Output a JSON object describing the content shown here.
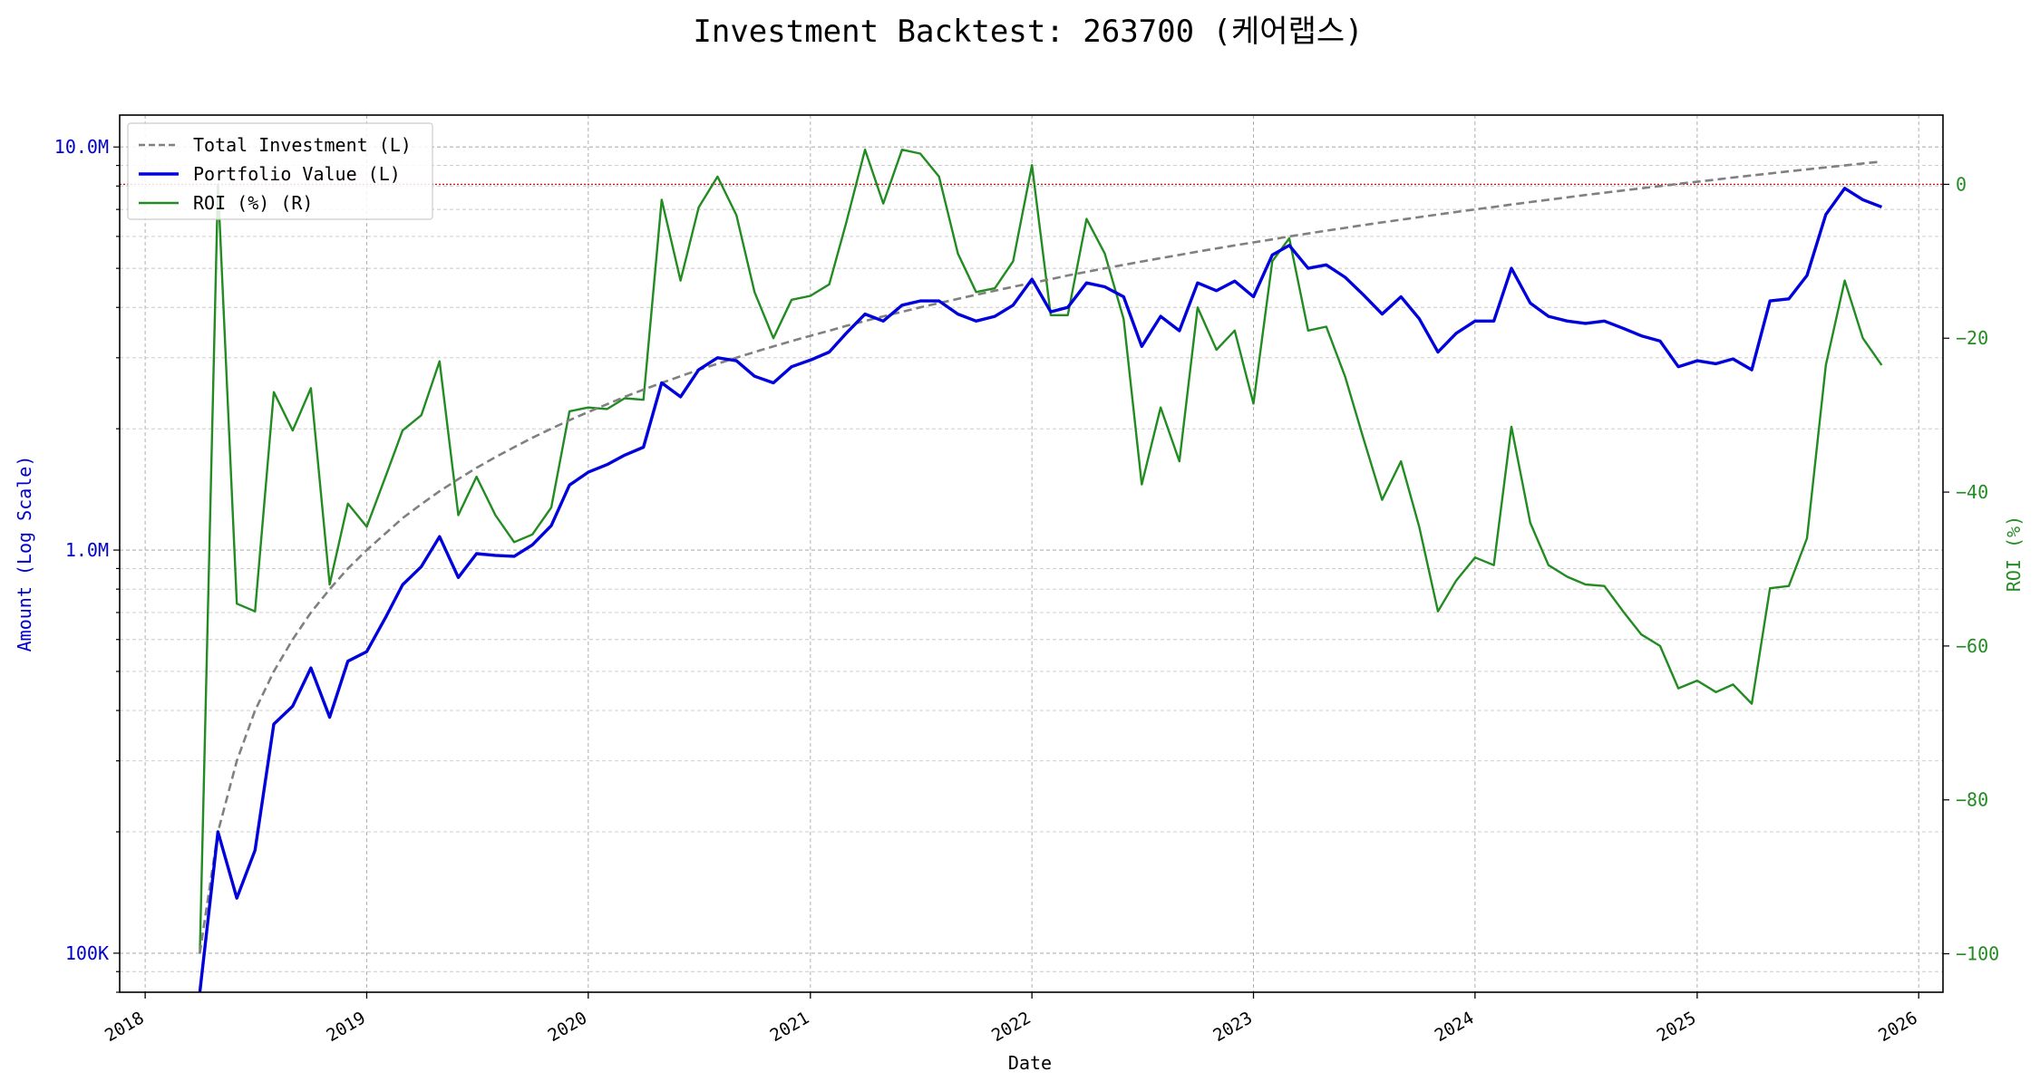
{
  "chart_data": {
    "type": "line",
    "title": "Investment Backtest: 263700 (케어랩스)",
    "xlabel": "Date",
    "ylabel_left": "Amount (Log Scale)",
    "ylabel_right": "ROI (%)",
    "left_scale": "log",
    "left_ylim": [
      80000,
      12000000
    ],
    "right_ylim": [
      -105,
      9
    ],
    "x_range": [
      "2017-11-20",
      "2026-02-10"
    ],
    "x_tick_labels": [
      "2018",
      "2019",
      "2020",
      "2021",
      "2022",
      "2023",
      "2024",
      "2025",
      "2026"
    ],
    "x_tick_dates": [
      "2018-01-01",
      "2019-01-01",
      "2020-01-01",
      "2021-01-01",
      "2022-01-01",
      "2023-01-01",
      "2024-01-01",
      "2025-01-01",
      "2026-01-01"
    ],
    "left_tick_labels": [
      "100K",
      "1.0M",
      "10.0M"
    ],
    "left_tick_values": [
      100000,
      1000000,
      10000000
    ],
    "right_tick_labels": [
      "0",
      "−20",
      "−40",
      "−60",
      "−80",
      "−100"
    ],
    "right_tick_values": [
      0,
      -20,
      -40,
      -60,
      -80,
      -100
    ],
    "grid": true,
    "legend_position": "top-left",
    "reference_line": {
      "axis": "right",
      "value": 0,
      "color": "#b22222"
    },
    "colors": {
      "total_investment": "#808080",
      "portfolio_value": "#0000dd",
      "roi": "#228b22",
      "left_axis": "#0000cc",
      "right_axis": "#228b22"
    },
    "dates": [
      "2018-04-01",
      "2018-05-01",
      "2018-06-01",
      "2018-07-01",
      "2018-08-01",
      "2018-09-01",
      "2018-10-01",
      "2018-11-01",
      "2018-12-01",
      "2019-01-01",
      "2019-02-01",
      "2019-03-01",
      "2019-04-01",
      "2019-05-01",
      "2019-06-01",
      "2019-07-01",
      "2019-08-01",
      "2019-09-01",
      "2019-10-01",
      "2019-11-01",
      "2019-12-01",
      "2020-01-01",
      "2020-02-01",
      "2020-03-01",
      "2020-04-01",
      "2020-05-01",
      "2020-06-01",
      "2020-07-01",
      "2020-08-01",
      "2020-09-01",
      "2020-10-01",
      "2020-11-01",
      "2020-12-01",
      "2021-01-01",
      "2021-02-01",
      "2021-03-01",
      "2021-04-01",
      "2021-05-01",
      "2021-06-01",
      "2021-07-01",
      "2021-08-01",
      "2021-09-01",
      "2021-10-01",
      "2021-11-01",
      "2021-12-01",
      "2022-01-01",
      "2022-02-01",
      "2022-03-01",
      "2022-04-01",
      "2022-05-01",
      "2022-06-01",
      "2022-07-01",
      "2022-08-01",
      "2022-09-01",
      "2022-10-01",
      "2022-11-01",
      "2022-12-01",
      "2023-01-01",
      "2023-02-01",
      "2023-03-01",
      "2023-04-01",
      "2023-05-01",
      "2023-06-01",
      "2023-07-01",
      "2023-08-01",
      "2023-09-01",
      "2023-10-01",
      "2023-11-01",
      "2023-12-01",
      "2024-01-01",
      "2024-02-01",
      "2024-03-01",
      "2024-04-01",
      "2024-05-01",
      "2024-06-01",
      "2024-07-01",
      "2024-08-01",
      "2024-09-01",
      "2024-10-01",
      "2024-11-01",
      "2024-12-01",
      "2025-01-01",
      "2025-02-01",
      "2025-03-01",
      "2025-04-01",
      "2025-05-01",
      "2025-06-01",
      "2025-07-01",
      "2025-08-01",
      "2025-09-01",
      "2025-10-01",
      "2025-11-01"
    ],
    "series": [
      {
        "name": "Total Investment (L)",
        "axis": "left",
        "style": "dashed",
        "values": [
          100000,
          200000,
          300000,
          400000,
          500000,
          600000,
          700000,
          800000,
          900000,
          1000000,
          1100000,
          1200000,
          1300000,
          1400000,
          1500000,
          1600000,
          1700000,
          1800000,
          1900000,
          2000000,
          2100000,
          2200000,
          2300000,
          2400000,
          2500000,
          2600000,
          2700000,
          2800000,
          2900000,
          3000000,
          3100000,
          3200000,
          3300000,
          3400000,
          3500000,
          3600000,
          3700000,
          3800000,
          3900000,
          4000000,
          4100000,
          4200000,
          4300000,
          4400000,
          4500000,
          4600000,
          4700000,
          4800000,
          4900000,
          5000000,
          5100000,
          5200000,
          5300000,
          5400000,
          5500000,
          5600000,
          5700000,
          5800000,
          5900000,
          6000000,
          6100000,
          6200000,
          6300000,
          6400000,
          6500000,
          6600000,
          6700000,
          6800000,
          6900000,
          7000000,
          7100000,
          7200000,
          7300000,
          7400000,
          7500000,
          7600000,
          7700000,
          7800000,
          7900000,
          8000000,
          8100000,
          8200000,
          8300000,
          8400000,
          8500000,
          8600000,
          8700000,
          8800000,
          8900000,
          9000000,
          9100000,
          9200000
        ]
      },
      {
        "name": "Portfolio Value (L)",
        "axis": "left",
        "style": "solid",
        "values": [
          0,
          200000,
          137000,
          180000,
          370000,
          410000,
          510000,
          385000,
          530000,
          560000,
          680000,
          820000,
          910000,
          1080000,
          855000,
          980000,
          970000,
          965000,
          1030000,
          1150000,
          1450000,
          1560000,
          1630000,
          1720000,
          1800000,
          2600000,
          2400000,
          2800000,
          3000000,
          2950000,
          2700000,
          2600000,
          2850000,
          2960000,
          3100000,
          3450000,
          3850000,
          3700000,
          4050000,
          4150000,
          4150000,
          3850000,
          3700000,
          3800000,
          4050000,
          4700000,
          3900000,
          4000000,
          4600000,
          4500000,
          4250000,
          3200000,
          3800000,
          3500000,
          4600000,
          4400000,
          4650000,
          4250000,
          5400000,
          5700000,
          5000000,
          5100000,
          4750000,
          4300000,
          3850000,
          4250000,
          3750000,
          3100000,
          3450000,
          3700000,
          3700000,
          5000000,
          4100000,
          3800000,
          3700000,
          3650000,
          3700000,
          3550000,
          3400000,
          3300000,
          2850000,
          2950000,
          2900000,
          2980000,
          2800000,
          4150000,
          4200000,
          4800000,
          6800000,
          7900000,
          7400000,
          7100000
        ]
      },
      {
        "name": "ROI (%) (R)",
        "axis": "right",
        "style": "solid",
        "values": [
          -100,
          0,
          -54.5,
          -55.5,
          -27,
          -32,
          -26.5,
          -52,
          -41.5,
          -44.5,
          -38,
          -32,
          -30,
          -23,
          -43,
          -38,
          -43,
          -46.5,
          -45.5,
          -42,
          -29.5,
          -29,
          -29.2,
          -27.8,
          -28,
          -2,
          -12.5,
          -3,
          1,
          -4,
          -14,
          -20,
          -15,
          -14.5,
          -13,
          -5,
          4.5,
          -2.5,
          4.5,
          4,
          1,
          -9,
          -14,
          -13.5,
          -10,
          2.5,
          -17,
          -17,
          -4.5,
          -9,
          -17.5,
          -39,
          -29,
          -36,
          -16,
          -21.5,
          -19,
          -28.5,
          -10,
          -7,
          -19,
          -18.5,
          -25,
          -33,
          -41,
          -36,
          -44.5,
          -55.5,
          -51.5,
          -48.5,
          -49.5,
          -31.5,
          -44,
          -49.5,
          -51,
          -52,
          -52.2,
          -55.5,
          -58.5,
          -60,
          -65.5,
          -64.5,
          -66,
          -65,
          -67.5,
          -52.5,
          -52.2,
          -46,
          -23.5,
          -12.5,
          -20,
          -23.5
        ]
      }
    ]
  }
}
